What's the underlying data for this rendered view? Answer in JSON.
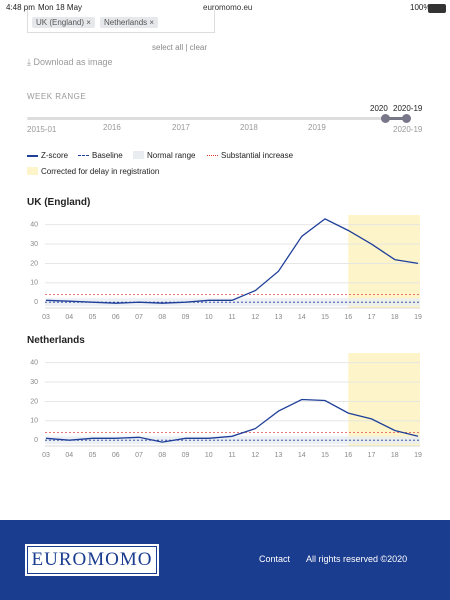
{
  "status_bar": {
    "time": "4:48 pm",
    "date": "Mon 18 May",
    "url": "euromomo.eu",
    "battery": "100%"
  },
  "filters": {
    "chips": [
      "UK (England)",
      "Netherlands"
    ],
    "select_all": "select all",
    "separator": "|",
    "clear": "clear"
  },
  "download": "Download as image",
  "week_range": {
    "title": "WEEK RANGE",
    "scale_labels": [
      "2015-01",
      "2016",
      "2017",
      "2018",
      "2019"
    ],
    "handle_labels": [
      "2020",
      "2020-19"
    ],
    "end_label": "2020-19"
  },
  "legend": {
    "z_score": "Z-score",
    "baseline": "Baseline",
    "normal_range": "Normal range",
    "substantial": "Substantial increase",
    "corrected": "Corrected for delay in registration"
  },
  "chart_data": [
    {
      "type": "line",
      "title": "UK (England)",
      "categories": [
        "03",
        "04",
        "05",
        "06",
        "07",
        "08",
        "09",
        "10",
        "11",
        "12",
        "13",
        "14",
        "15",
        "16",
        "17",
        "18",
        "19"
      ],
      "series": [
        {
          "name": "Z-score",
          "color": "#1f3f99",
          "values": [
            1,
            0.5,
            0,
            -0.5,
            0,
            -0.5,
            0,
            1,
            1,
            6,
            16,
            34,
            43,
            37,
            30,
            22,
            20
          ]
        }
      ],
      "baseline": 0,
      "substantial_increase": 4,
      "normal_range": [
        -2,
        2
      ],
      "corrected_range": [
        "16",
        "19"
      ],
      "ylim": [
        -3,
        45
      ],
      "yticks": [
        0,
        10,
        20,
        30,
        40
      ],
      "grid": true
    },
    {
      "type": "line",
      "title": "Netherlands",
      "categories": [
        "03",
        "04",
        "05",
        "06",
        "07",
        "08",
        "09",
        "10",
        "11",
        "12",
        "13",
        "14",
        "15",
        "16",
        "17",
        "18",
        "19"
      ],
      "series": [
        {
          "name": "Z-score",
          "color": "#1f3f99",
          "values": [
            1,
            0,
            1,
            1,
            1.5,
            -1,
            1,
            1,
            2,
            6,
            15,
            21,
            20.5,
            14,
            11,
            5,
            2
          ]
        }
      ],
      "baseline": 0,
      "substantial_increase": 4,
      "normal_range": [
        -2,
        2
      ],
      "corrected_range": [
        "16",
        "19"
      ],
      "ylim": [
        -3,
        45
      ],
      "yticks": [
        0,
        10,
        20,
        30,
        40
      ],
      "grid": true
    }
  ],
  "footer": {
    "logo": "EUROMOMO",
    "contact": "Contact",
    "rights": "All rights reserved ©2020"
  }
}
